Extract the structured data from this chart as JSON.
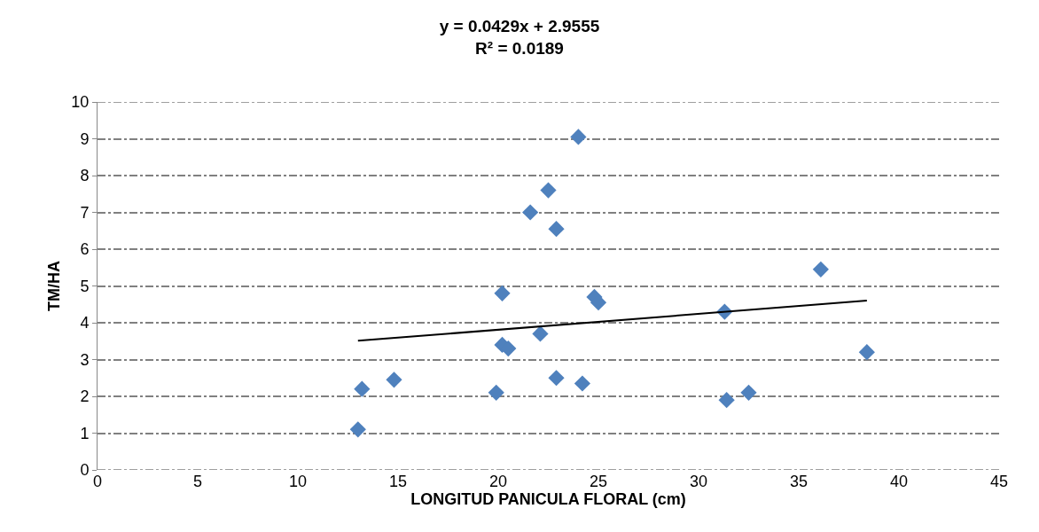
{
  "chart_data": {
    "type": "scatter",
    "title": "y = 0.0429x + 2.9555\nR² = 0.0189",
    "xlabel": "LONGITUD PANICULA FLORAL (cm)",
    "ylabel": "TM/HA",
    "marker": "diamond",
    "grid": "y",
    "legend": false,
    "xlim": [
      0,
      45
    ],
    "xticks": [
      0,
      5,
      10,
      15,
      20,
      25,
      30,
      35,
      40,
      45
    ],
    "ylim": [
      0,
      10
    ],
    "yticks": [
      0,
      1,
      2,
      3,
      4,
      5,
      6,
      7,
      8,
      9,
      10
    ],
    "series": [
      {
        "color": "#4f81bd",
        "x": [
          13.0,
          13.2,
          14.8,
          19.9,
          20.2,
          20.2,
          20.5,
          21.6,
          22.1,
          22.5,
          22.9,
          22.9,
          24.0,
          24.2,
          24.8,
          25.0,
          31.3,
          31.4,
          32.5,
          36.1,
          38.4
        ],
        "values": [
          1.1,
          2.2,
          2.45,
          2.1,
          4.8,
          3.4,
          3.3,
          7.0,
          3.7,
          7.6,
          2.5,
          6.55,
          9.05,
          2.35,
          4.7,
          4.55,
          4.3,
          1.9,
          2.1,
          5.45,
          3.2
        ]
      },
      {
        "type": "line",
        "color": "#000000",
        "marker": "none",
        "x": [
          13.0,
          38.4
        ],
        "values": [
          3.51,
          4.6
        ]
      }
    ]
  }
}
